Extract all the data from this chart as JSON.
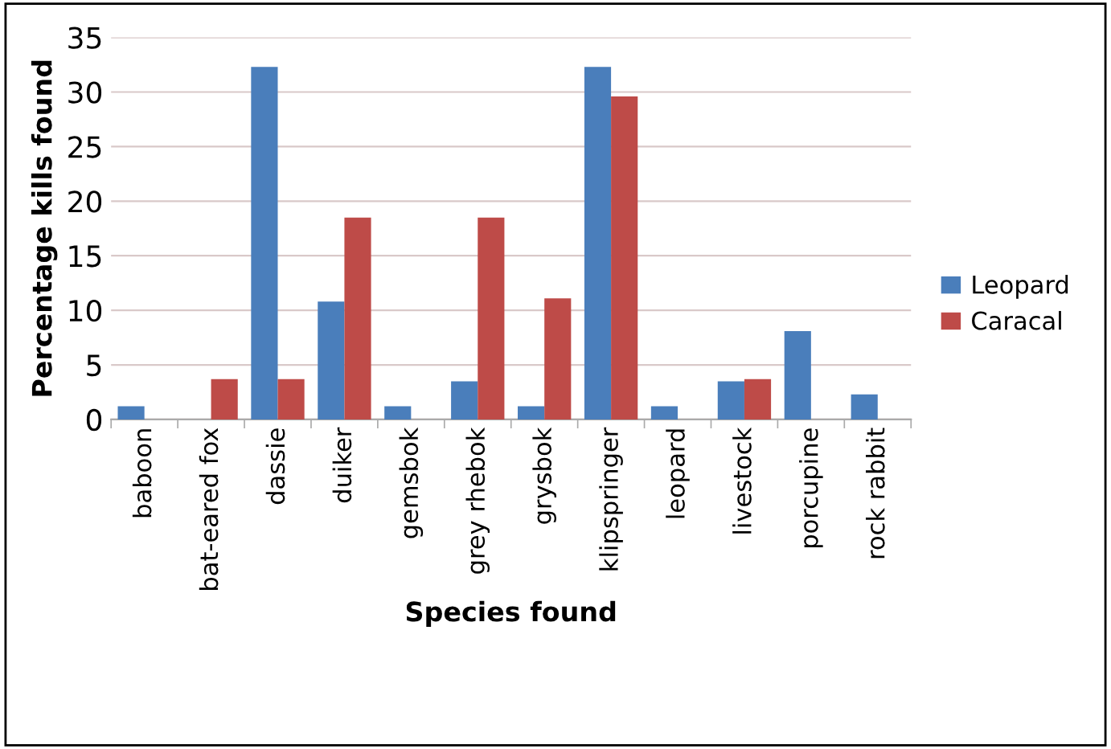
{
  "chart_data": {
    "type": "bar",
    "xlabel": "Species found",
    "ylabel": "Percentage kills found",
    "categories": [
      "baboon",
      "bat-eared fox",
      "dassie",
      "duiker",
      "gemsbok",
      "grey rhebok",
      "grysbok",
      "klipspringer",
      "leopard",
      "livestock",
      "porcupine",
      "rock rabbit"
    ],
    "series": [
      {
        "name": "Leopard",
        "color": "#4a7ebb",
        "values": [
          1.2,
          0,
          32.3,
          10.8,
          1.2,
          3.5,
          1.2,
          32.3,
          1.2,
          3.5,
          8.1,
          2.3
        ]
      },
      {
        "name": "Caracal",
        "color": "#be4b48",
        "values": [
          0,
          3.7,
          3.7,
          18.5,
          0,
          18.5,
          11.1,
          29.6,
          0,
          3.7,
          0,
          0
        ]
      }
    ],
    "ylim": [
      0,
      35
    ],
    "yticks": [
      0,
      5,
      10,
      15,
      20,
      25,
      30,
      35
    ],
    "grid": "y",
    "legend": "right"
  }
}
